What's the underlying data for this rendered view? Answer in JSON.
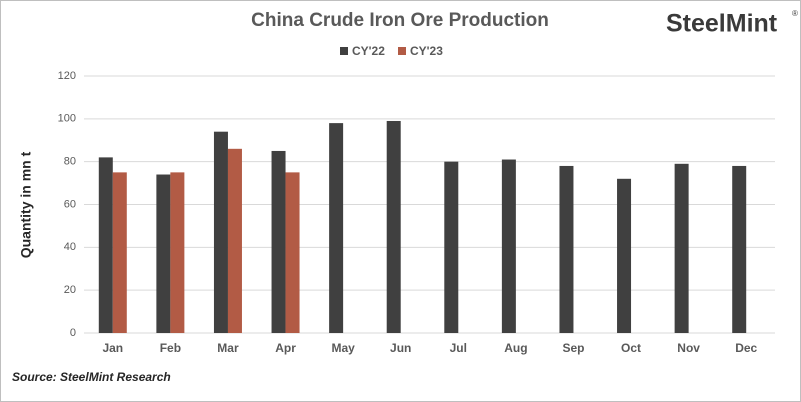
{
  "chart_data": {
    "type": "bar",
    "title": "China Crude Iron Ore Production",
    "y_label": "Quantity in mn t",
    "categories": [
      "Jan",
      "Feb",
      "Mar",
      "Apr",
      "May",
      "Jun",
      "Jul",
      "Aug",
      "Sep",
      "Oct",
      "Nov",
      "Dec"
    ],
    "series": [
      {
        "name": "CY'22",
        "color": "#404040",
        "values": [
          82,
          74,
          94,
          85,
          98,
          99,
          80,
          81,
          78,
          72,
          79,
          78
        ]
      },
      {
        "name": "CY'23",
        "color": "#b25b45",
        "values": [
          75,
          75,
          86,
          75,
          null,
          null,
          null,
          null,
          null,
          null,
          null,
          null
        ]
      }
    ],
    "ylim": [
      0,
      120
    ],
    "yticks": [
      0,
      20,
      40,
      60,
      80,
      100,
      120
    ],
    "grid": true,
    "legend": "top",
    "source": "Source: SteelMint Research",
    "logo": "SteelMint",
    "logo_mark": "®"
  }
}
